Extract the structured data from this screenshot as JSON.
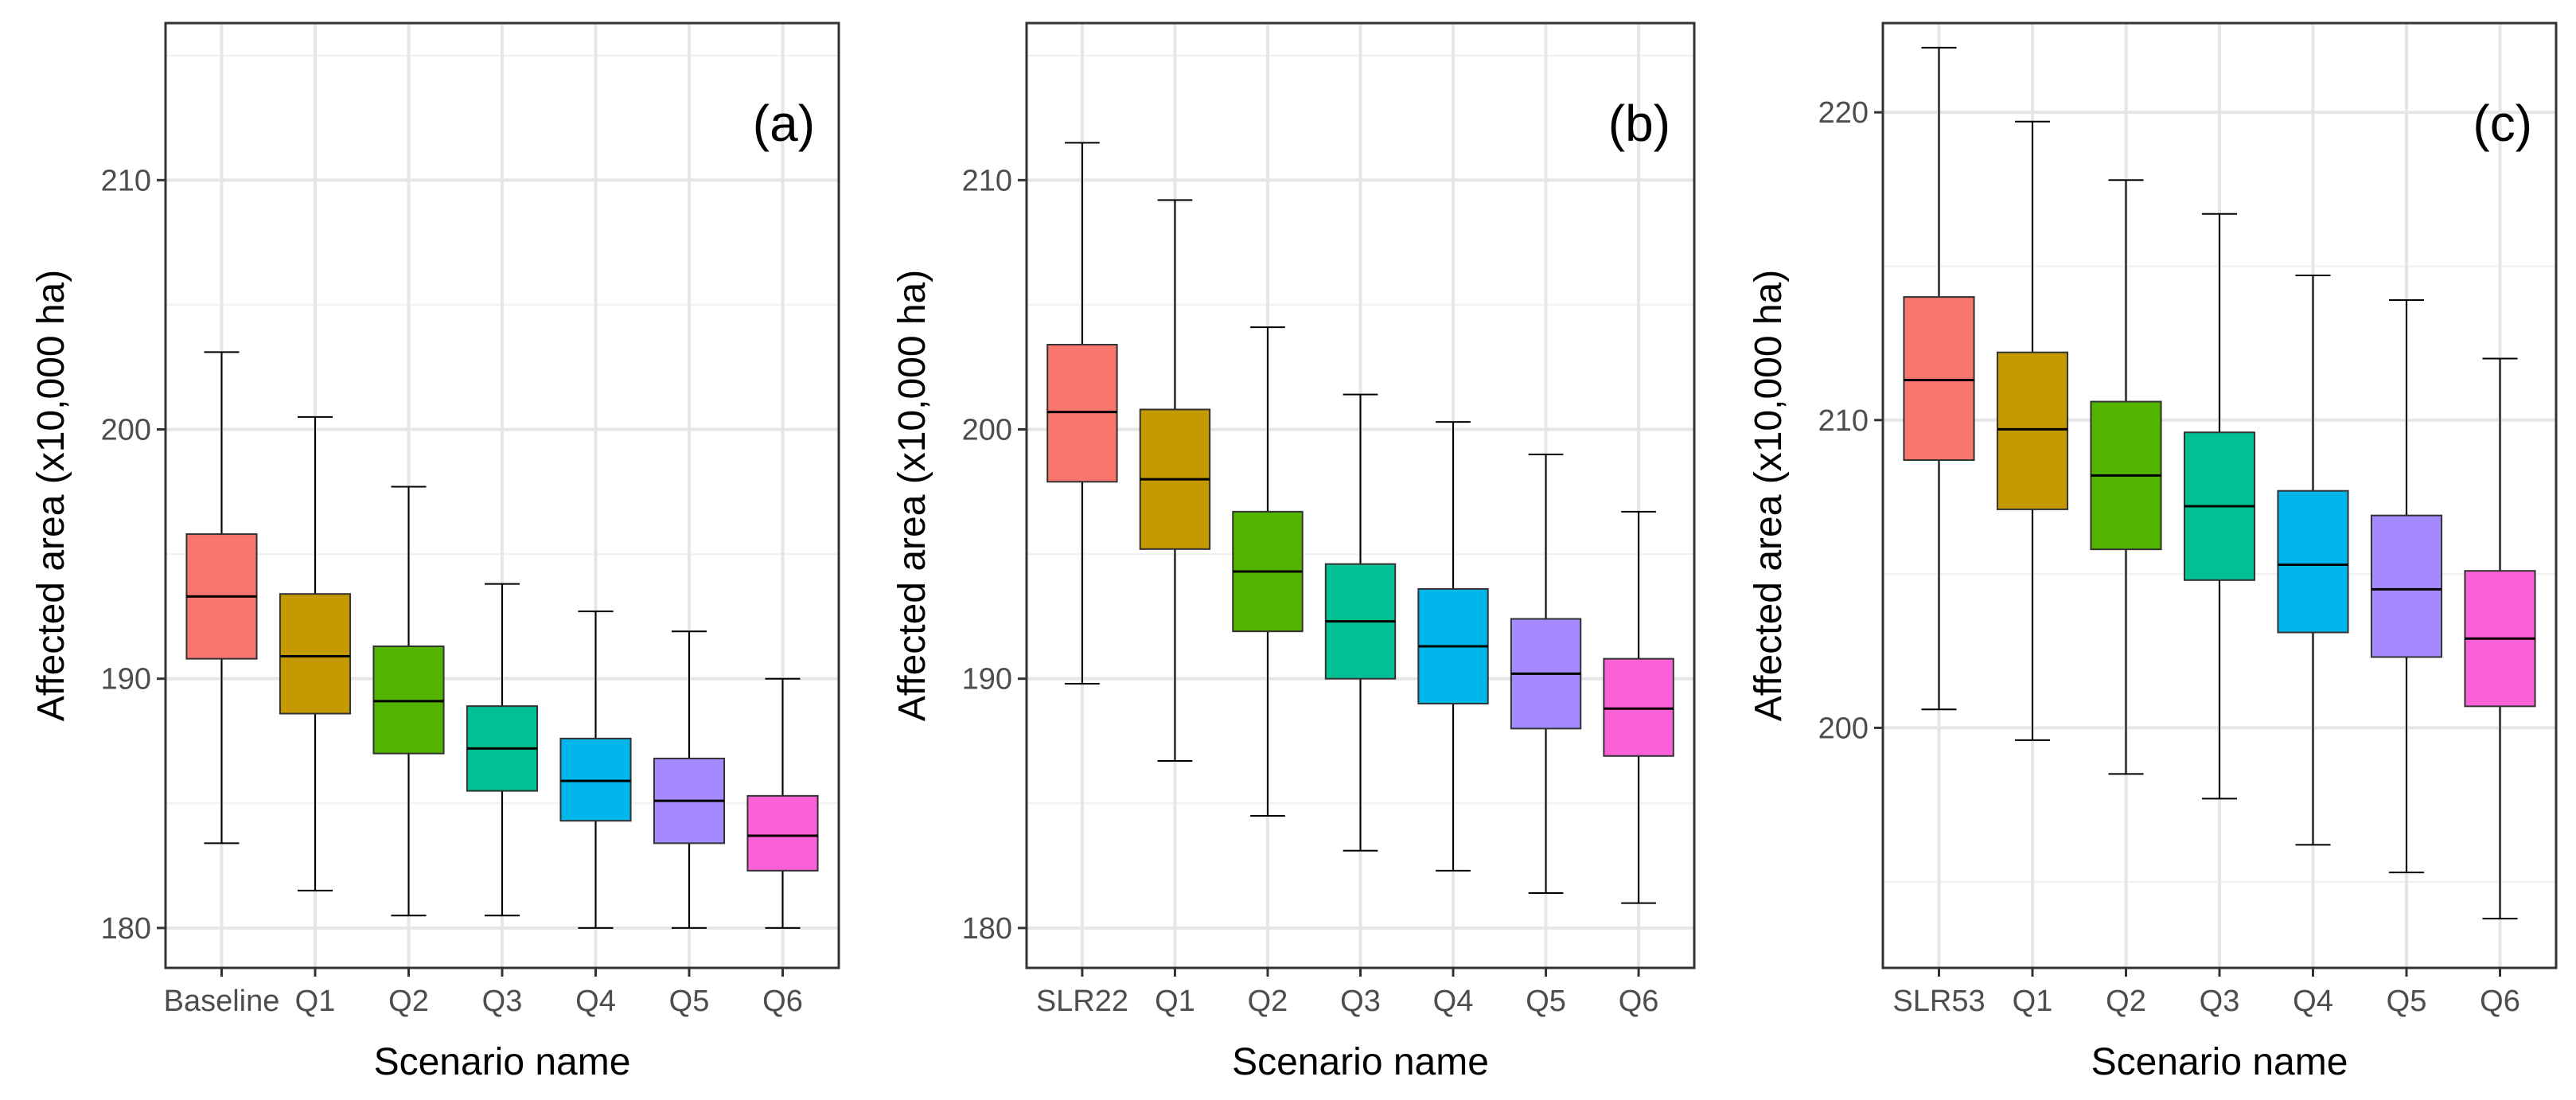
{
  "chart_data": [
    {
      "type": "boxplot",
      "panel_label": "(a)",
      "xlabel": "Scenario name",
      "ylabel": "Affected area (x10,000 ha)",
      "ylim": [
        178.4,
        216.3
      ],
      "yticks": [
        180,
        190,
        200,
        210
      ],
      "grid": true,
      "categories": [
        "Baseline",
        "Q1",
        "Q2",
        "Q3",
        "Q4",
        "Q5",
        "Q6"
      ],
      "colors": [
        "#F8766D",
        "#C49A00",
        "#53B400",
        "#00C094",
        "#00B6EB",
        "#A58AFF",
        "#FB61D7"
      ],
      "boxes": [
        {
          "min": 183.4,
          "q1": 190.8,
          "median": 193.3,
          "q3": 195.8,
          "max": 203.1
        },
        {
          "min": 181.5,
          "q1": 188.6,
          "median": 190.9,
          "q3": 193.4,
          "max": 200.5
        },
        {
          "min": 180.5,
          "q1": 187.0,
          "median": 189.1,
          "q3": 191.3,
          "max": 197.7
        },
        {
          "min": 180.5,
          "q1": 185.5,
          "median": 187.2,
          "q3": 188.9,
          "max": 193.8
        },
        {
          "min": 180.0,
          "q1": 184.3,
          "median": 185.9,
          "q3": 187.6,
          "max": 192.7
        },
        {
          "min": 180.0,
          "q1": 183.4,
          "median": 185.1,
          "q3": 186.8,
          "max": 191.9
        },
        {
          "min": 180.0,
          "q1": 182.3,
          "median": 183.7,
          "q3": 185.3,
          "max": 190.0
        }
      ]
    },
    {
      "type": "boxplot",
      "panel_label": "(b)",
      "xlabel": "Scenario name",
      "ylabel": "Affected area (x10,000 ha)",
      "ylim": [
        178.4,
        216.3
      ],
      "yticks": [
        180,
        190,
        200,
        210
      ],
      "grid": true,
      "categories": [
        "SLR22",
        "Q1",
        "Q2",
        "Q3",
        "Q4",
        "Q5",
        "Q6"
      ],
      "colors": [
        "#F8766D",
        "#C49A00",
        "#53B400",
        "#00C094",
        "#00B6EB",
        "#A58AFF",
        "#FB61D7"
      ],
      "boxes": [
        {
          "min": 189.8,
          "q1": 197.9,
          "median": 200.7,
          "q3": 203.4,
          "max": 211.5
        },
        {
          "min": 186.7,
          "q1": 195.2,
          "median": 198.0,
          "q3": 200.8,
          "max": 209.2
        },
        {
          "min": 184.5,
          "q1": 191.9,
          "median": 194.3,
          "q3": 196.7,
          "max": 204.1
        },
        {
          "min": 183.1,
          "q1": 190.0,
          "median": 192.3,
          "q3": 194.6,
          "max": 201.4
        },
        {
          "min": 182.3,
          "q1": 189.0,
          "median": 191.3,
          "q3": 193.6,
          "max": 200.3
        },
        {
          "min": 181.4,
          "q1": 188.0,
          "median": 190.2,
          "q3": 192.4,
          "max": 199.0
        },
        {
          "min": 181.0,
          "q1": 186.9,
          "median": 188.8,
          "q3": 190.8,
          "max": 196.7
        }
      ]
    },
    {
      "type": "boxplot",
      "panel_label": "(c)",
      "xlabel": "Scenario name",
      "ylabel": "Affected area (x10,000 ha)",
      "ylim": [
        192.2,
        222.9
      ],
      "yticks": [
        200,
        210,
        220
      ],
      "grid": true,
      "categories": [
        "SLR53",
        "Q1",
        "Q2",
        "Q3",
        "Q4",
        "Q5",
        "Q6"
      ],
      "colors": [
        "#F8766D",
        "#C49A00",
        "#53B400",
        "#00C094",
        "#00B6EB",
        "#A58AFF",
        "#FB61D7"
      ],
      "boxes": [
        {
          "min": 200.6,
          "q1": 208.7,
          "median": 211.3,
          "q3": 214.0,
          "max": 222.1
        },
        {
          "min": 199.6,
          "q1": 207.1,
          "median": 209.7,
          "q3": 212.2,
          "max": 219.7
        },
        {
          "min": 198.5,
          "q1": 205.8,
          "median": 208.2,
          "q3": 210.6,
          "max": 217.8
        },
        {
          "min": 197.7,
          "q1": 204.8,
          "median": 207.2,
          "q3": 209.6,
          "max": 216.7
        },
        {
          "min": 196.2,
          "q1": 203.1,
          "median": 205.3,
          "q3": 207.7,
          "max": 214.7
        },
        {
          "min": 195.3,
          "q1": 202.3,
          "median": 204.5,
          "q3": 206.9,
          "max": 213.9
        },
        {
          "min": 193.8,
          "q1": 200.7,
          "median": 202.9,
          "q3": 205.1,
          "max": 212.0
        }
      ]
    }
  ]
}
